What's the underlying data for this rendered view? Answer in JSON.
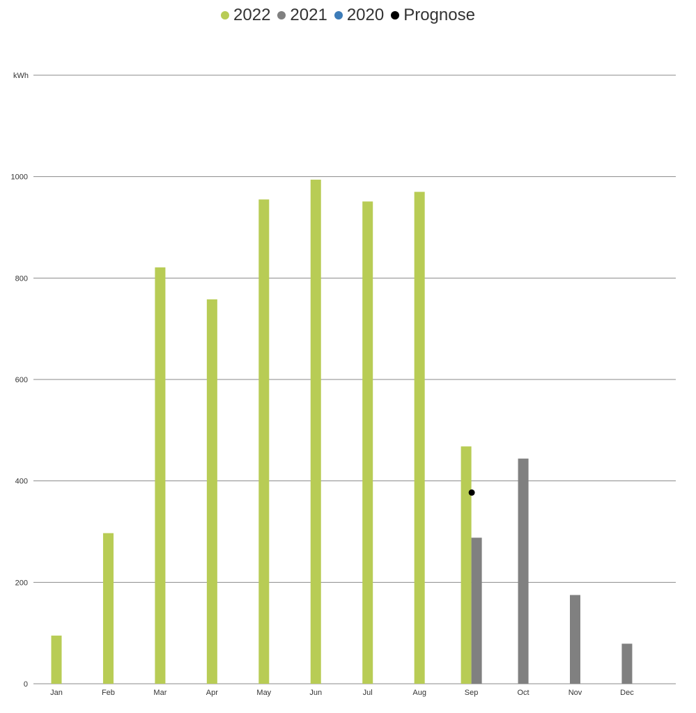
{
  "chart_data": {
    "type": "bar",
    "unit": "kWh",
    "categories": [
      "Jan",
      "Feb",
      "Mar",
      "Apr",
      "May",
      "Jun",
      "Jul",
      "Aug",
      "Sep",
      "Oct",
      "Nov",
      "Dec"
    ],
    "ylim": [
      0,
      1200
    ],
    "yticks": [
      "0",
      "200",
      "400",
      "600",
      "800",
      "1000"
    ],
    "series": [
      {
        "name": "2022",
        "color": "#b8cc55",
        "values": [
          95,
          297,
          821,
          758,
          955,
          994,
          951,
          970,
          468,
          null,
          null,
          null
        ]
      },
      {
        "name": "2021",
        "color": "#808080",
        "values": [
          null,
          null,
          null,
          null,
          null,
          null,
          null,
          null,
          288,
          444,
          175,
          79
        ]
      },
      {
        "name": "2020",
        "color": "#3d7cb8",
        "values": [
          null,
          null,
          null,
          null,
          null,
          null,
          null,
          null,
          null,
          null,
          null,
          null
        ]
      }
    ],
    "forecast": {
      "name": "Prognose",
      "color": "#000000",
      "category": "Sep",
      "value": 377
    },
    "legend_position": "top-center",
    "grid": true
  }
}
